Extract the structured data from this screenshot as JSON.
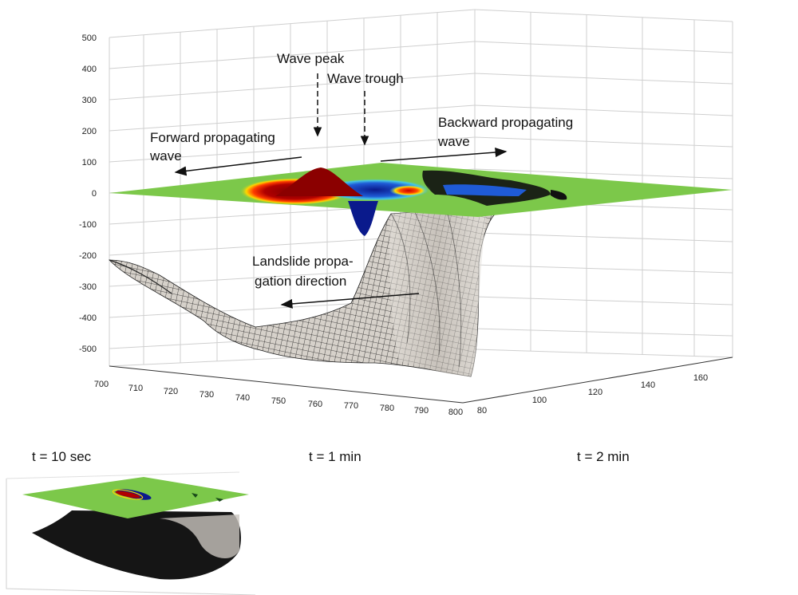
{
  "main_plot": {
    "z_ticks": [
      "500",
      "400",
      "300",
      "200",
      "100",
      "0",
      "-100",
      "-200",
      "-300",
      "-400",
      "-500"
    ],
    "x_ticks": [
      "700",
      "710",
      "720",
      "730",
      "740",
      "750",
      "760",
      "770",
      "780",
      "790",
      "800"
    ],
    "y_ticks": [
      "80",
      "100",
      "120",
      "140",
      "160"
    ],
    "annotations": {
      "wave_peak": "Wave peak",
      "wave_trough": "Wave trough",
      "forward_line1": "Forward propagating",
      "forward_line2": "wave",
      "backward_line1": "Backward propagating",
      "backward_line2": "wave",
      "landslide_line1": "Landslide propa-",
      "landslide_line2": "gation direction"
    }
  },
  "panels": [
    {
      "title": "t = 10 sec"
    },
    {
      "title": "t = 1 min"
    },
    {
      "title": "t = 2 min"
    }
  ],
  "colors": {
    "surface": "#7cc84a",
    "crest": "#8b0000",
    "trough": "#0a1a8c",
    "terrain_fill": "#d4cfc8",
    "terrain_mesh": "#1a1a1a"
  }
}
